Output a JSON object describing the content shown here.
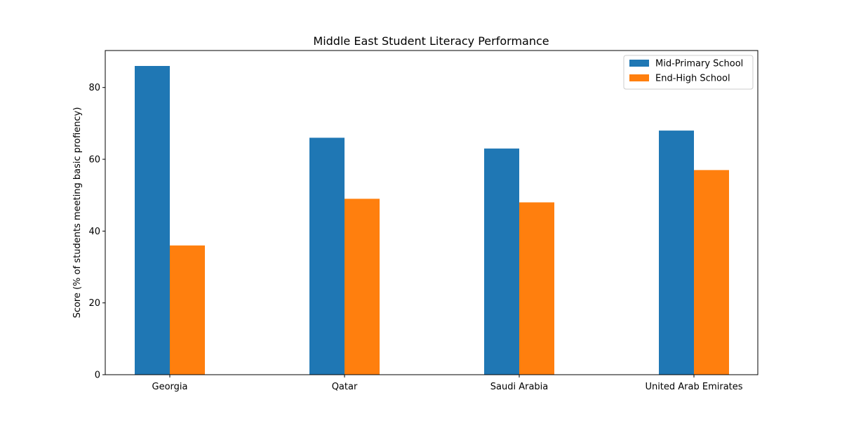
{
  "chart_data": {
    "type": "bar",
    "title": "Middle East Student Literacy Performance",
    "xlabel": "",
    "ylabel": "Score (% of students meeting basic profiency)",
    "categories": [
      "Georgia",
      "Qatar",
      "Saudi Arabia",
      "United Arab Emirates"
    ],
    "series": [
      {
        "name": "Mid-Primary School",
        "color": "#1f77b4",
        "values": [
          86,
          66,
          63,
          68
        ]
      },
      {
        "name": "End-High School",
        "color": "#ff7f0e",
        "values": [
          36,
          49,
          48,
          57
        ]
      }
    ],
    "ylim": [
      0,
      90.3
    ],
    "yticks": [
      0,
      20,
      40,
      60,
      80
    ],
    "grid": false,
    "legend_position": "top-right"
  }
}
